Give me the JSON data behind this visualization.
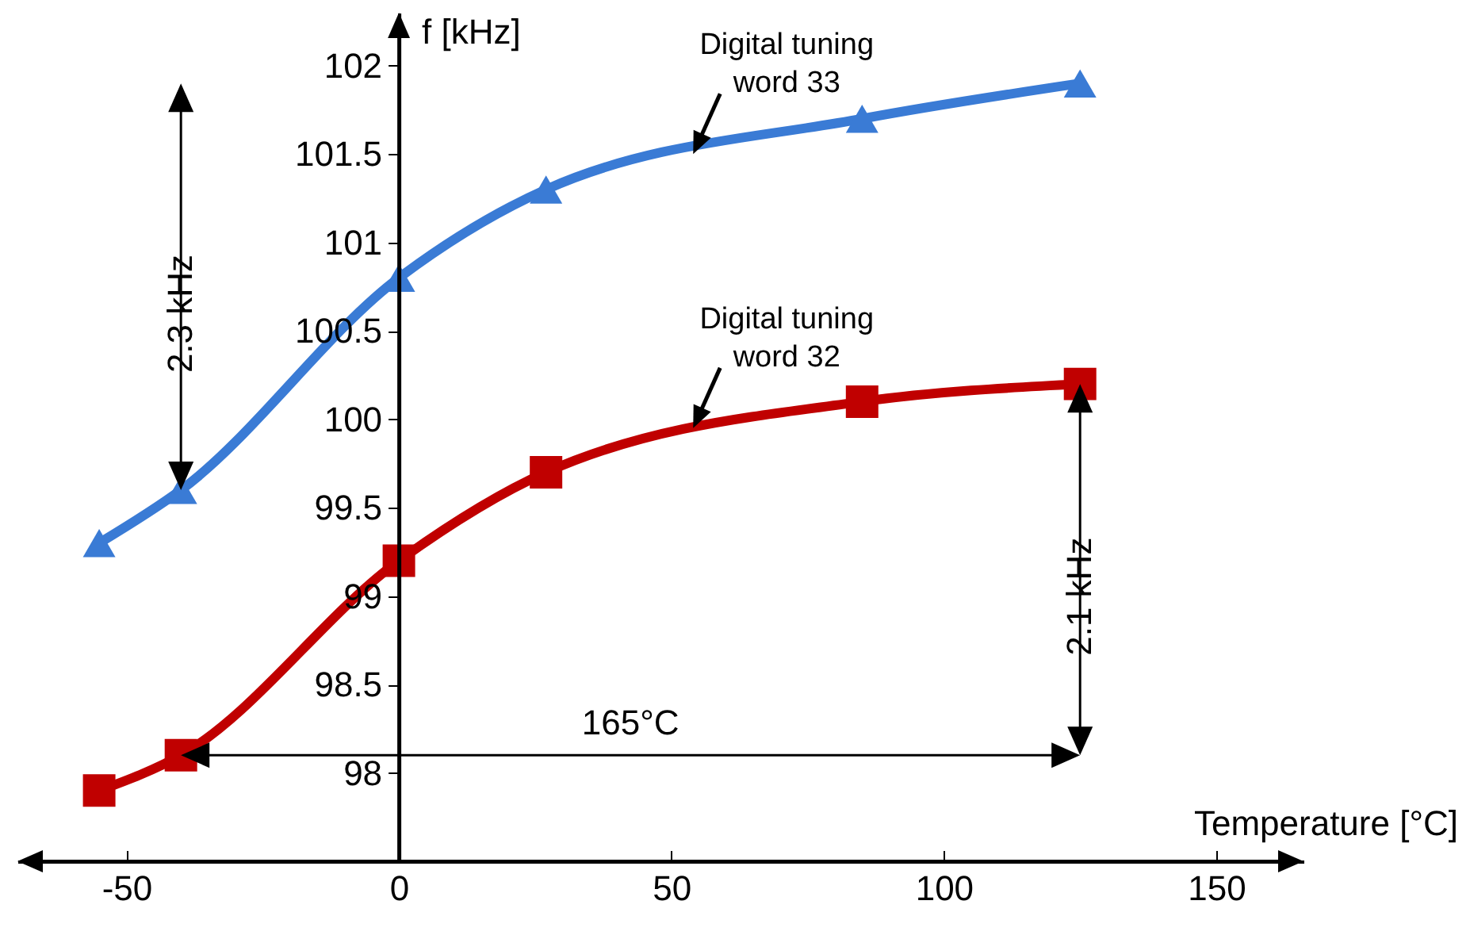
{
  "chart_data": {
    "type": "line",
    "xlabel": "Temperature [°C]",
    "ylabel": "f [kHz]",
    "x": [
      -55,
      -40,
      0,
      27,
      85,
      125
    ],
    "series": [
      {
        "color": "#3a7bd5",
        "marker": "triangle",
        "values": [
          99.3,
          99.6,
          100.8,
          101.3,
          101.7,
          101.9
        ]
      },
      {
        "color": "#c00000",
        "marker": "square",
        "values": [
          97.9,
          98.1,
          99.2,
          99.7,
          100.1,
          100.2
        ]
      }
    ],
    "xlim": [
      -70,
      166
    ],
    "ylim": [
      97.5,
      102.3
    ],
    "xticks": [
      -50,
      0,
      50,
      100,
      150
    ],
    "yticks": [
      98,
      98.5,
      99,
      99.5,
      100,
      100.5,
      101,
      101.5,
      102
    ],
    "grid": false,
    "line_style": "solid",
    "annotations": [
      "2.3 kHz",
      "2.1 kHz",
      "165°C",
      {
        "text": "Digital tuning\nword 33",
        "x": 54,
        "y": 101.5
      },
      {
        "text": "Digital tuning\nword 32",
        "x": 54,
        "y": 99.95
      }
    ]
  }
}
